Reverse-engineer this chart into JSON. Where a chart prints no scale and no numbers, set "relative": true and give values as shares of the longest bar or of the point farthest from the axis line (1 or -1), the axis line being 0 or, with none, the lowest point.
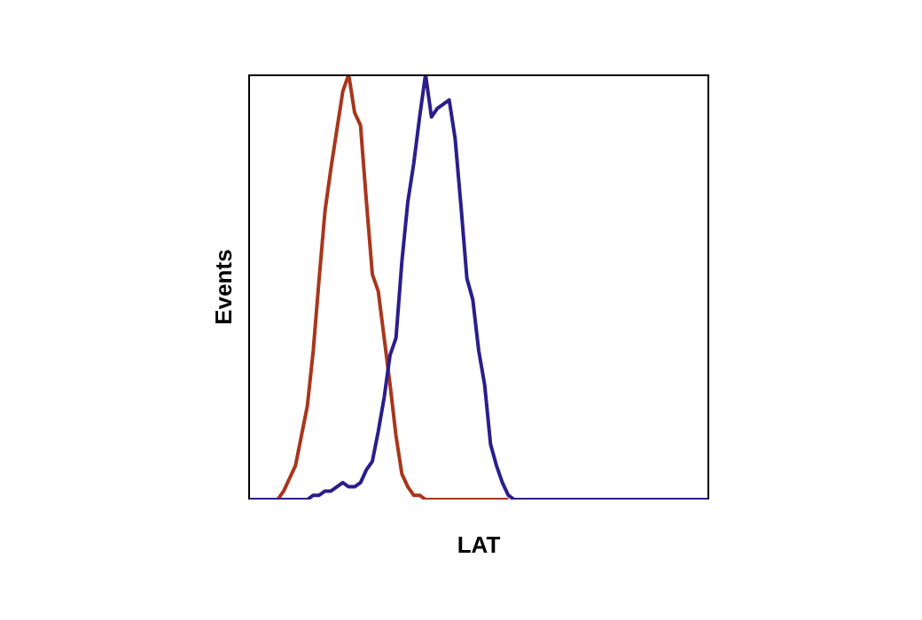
{
  "chart_data": {
    "type": "line",
    "xlabel": "LAT",
    "ylabel": "Events",
    "relative": true,
    "grid": false,
    "legend": false,
    "marker": "none",
    "line_style": "solid",
    "categories": [
      null,
      null,
      null,
      null,
      null,
      null,
      null,
      null,
      null,
      null,
      null,
      null,
      null,
      null,
      null,
      null,
      null,
      null,
      null,
      null,
      null,
      null,
      null,
      null,
      null,
      null,
      null,
      null,
      null,
      null,
      null,
      null,
      null,
      null,
      null,
      null,
      null,
      null,
      null,
      null,
      null,
      null,
      null,
      null,
      null,
      null,
      null,
      null,
      null,
      null,
      null,
      null,
      null,
      null,
      null,
      null,
      null,
      null,
      null,
      null,
      null,
      null,
      null,
      null,
      null,
      null,
      null,
      null,
      null,
      null,
      null,
      null,
      null,
      null,
      null,
      null,
      null,
      null,
      null
    ],
    "series": [
      {
        "color": "#a8361c",
        "values": [
          null,
          null,
          null,
          null,
          null,
          0,
          0.02,
          0.05,
          0.08,
          0.15,
          0.22,
          0.35,
          0.52,
          0.68,
          0.78,
          0.87,
          0.96,
          1,
          0.91,
          0.88,
          0.7,
          0.53,
          0.49,
          0.38,
          0.27,
          0.15,
          0.06,
          0.03,
          0.01,
          0.01,
          0,
          0,
          0,
          0,
          0,
          0,
          0,
          0,
          0,
          0,
          0,
          0,
          0,
          0,
          0,
          null,
          null,
          null,
          null,
          null,
          null,
          null,
          null,
          null,
          null,
          null,
          null,
          null,
          null,
          null,
          null,
          null,
          null,
          null,
          null,
          null,
          null,
          null,
          null,
          null,
          null,
          null,
          null,
          null,
          null,
          null,
          null,
          null,
          null
        ]
      },
      {
        "color": "#2a1e8c",
        "values": [
          0,
          0,
          0,
          0,
          0,
          0,
          0,
          0,
          0,
          0,
          0,
          0.01,
          0.01,
          0.02,
          0.02,
          0.03,
          0.04,
          0.03,
          0.03,
          0.04,
          0.07,
          0.09,
          0.16,
          0.24,
          0.34,
          0.38,
          0.56,
          0.7,
          0.79,
          0.9,
          1,
          0.9,
          0.92,
          0.93,
          0.94,
          0.85,
          0.69,
          0.52,
          0.47,
          0.35,
          0.27,
          0.13,
          0.08,
          0.04,
          0.01,
          0,
          0,
          0,
          0,
          0,
          0,
          0,
          0,
          0,
          0,
          0,
          0,
          0,
          0,
          0,
          0,
          0,
          0,
          0,
          0,
          0,
          0,
          0,
          0,
          0,
          0,
          0,
          0,
          0,
          0,
          0,
          0,
          0,
          0
        ]
      }
    ]
  }
}
